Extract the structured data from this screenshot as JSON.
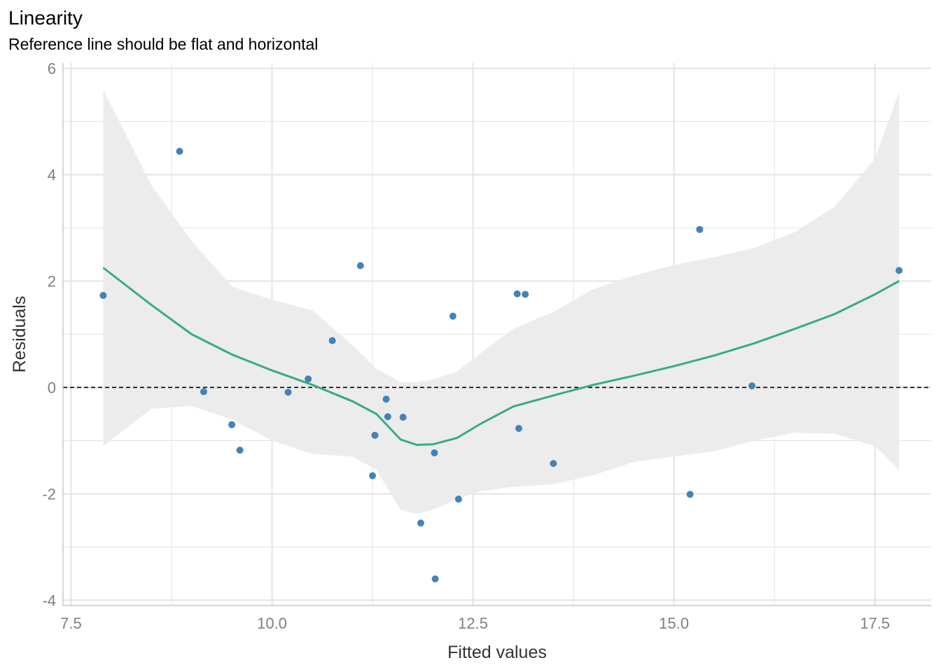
{
  "title": "Linearity",
  "subtitle": "Reference line should be flat and horizontal",
  "chart_data": {
    "type": "scatter",
    "title": "Linearity",
    "subtitle": "Reference line should be flat and horizontal",
    "xlabel": "Fitted values",
    "ylabel": "Residuals",
    "xlim": [
      7.4,
      18.2
    ],
    "ylim": [
      -4.1,
      6.1
    ],
    "x_ticks": [
      "7.5",
      "10.0",
      "12.5",
      "15.0",
      "17.5"
    ],
    "x_tick_values": [
      7.5,
      10.0,
      12.5,
      15.0,
      17.5
    ],
    "y_ticks": [
      "-4",
      "-2",
      "0",
      "2",
      "4",
      "6"
    ],
    "y_tick_values": [
      -4,
      -2,
      0,
      2,
      4,
      6
    ],
    "reference_line": 0,
    "grid": true,
    "colors": {
      "points": "#4682b4",
      "smooth": "#3aaa85",
      "ribbon": "#ebebeb",
      "grid": "#e3e3e3",
      "reference": "#000000"
    },
    "points": {
      "x": [
        7.9,
        8.85,
        9.15,
        9.5,
        9.6,
        10.2,
        10.45,
        10.75,
        11.1,
        11.25,
        11.28,
        11.42,
        11.44,
        11.63,
        11.85,
        12.02,
        12.03,
        12.25,
        12.32,
        13.05,
        13.07,
        13.15,
        13.5,
        15.2,
        15.32,
        15.97,
        17.8
      ],
      "y": [
        1.73,
        4.44,
        -0.08,
        -0.7,
        -1.18,
        -0.09,
        0.16,
        0.88,
        2.29,
        -1.66,
        -0.9,
        -0.22,
        -0.55,
        -0.56,
        -2.55,
        -1.23,
        -3.6,
        1.34,
        -2.1,
        1.76,
        -0.77,
        1.75,
        -1.43,
        -2.01,
        2.97,
        0.03,
        2.2
      ]
    },
    "smooth": {
      "name": "",
      "x": [
        7.9,
        8.5,
        9.0,
        9.5,
        10.0,
        10.5,
        11.0,
        11.3,
        11.6,
        11.8,
        12.0,
        12.3,
        12.6,
        13.0,
        13.5,
        14.0,
        14.5,
        15.0,
        15.5,
        16.0,
        16.5,
        17.0,
        17.5,
        17.8
      ],
      "y": [
        2.25,
        1.55,
        1.0,
        0.62,
        0.32,
        0.05,
        -0.26,
        -0.5,
        -0.98,
        -1.08,
        -1.07,
        -0.95,
        -0.68,
        -0.36,
        -0.15,
        0.05,
        0.22,
        0.4,
        0.6,
        0.83,
        1.1,
        1.38,
        1.75,
        2.0
      ],
      "lower": [
        -1.1,
        -0.4,
        -0.35,
        -0.6,
        -1.0,
        -1.25,
        -1.3,
        -1.55,
        -2.3,
        -2.38,
        -2.3,
        -2.1,
        -1.95,
        -1.87,
        -1.82,
        -1.65,
        -1.4,
        -1.3,
        -1.2,
        -1.0,
        -0.85,
        -0.87,
        -1.1,
        -1.55
      ],
      "upper": [
        5.6,
        3.8,
        2.75,
        1.9,
        1.65,
        1.45,
        0.8,
        0.35,
        0.1,
        0.1,
        0.15,
        0.3,
        0.65,
        1.1,
        1.42,
        1.85,
        2.1,
        2.3,
        2.45,
        2.62,
        2.92,
        3.4,
        4.3,
        5.55
      ]
    }
  }
}
